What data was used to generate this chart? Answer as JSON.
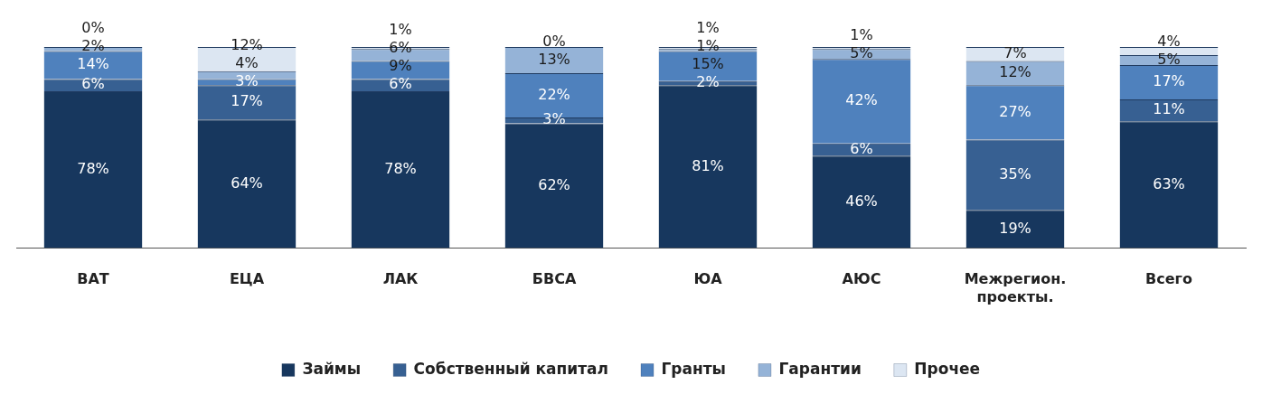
{
  "chart_data": {
    "type": "bar",
    "stacked": true,
    "categories": [
      "ВАТ",
      "ЕЦА",
      "ЛАК",
      "БВСА",
      "ЮА",
      "АЮС",
      "Межрегион. проекты.",
      "Всего"
    ],
    "series": [
      {
        "name": "Займы",
        "color": "#17375e",
        "values": [
          78,
          64,
          78,
          62,
          81,
          46,
          19,
          63
        ],
        "value_labels": [
          "78%",
          "64%",
          "78%",
          "62%",
          "81%",
          "46%",
          "19%",
          "63%"
        ]
      },
      {
        "name": "Собственный капитал",
        "color": "#376092",
        "values": [
          6,
          17,
          6,
          3,
          2,
          6,
          35,
          11
        ],
        "value_labels": [
          "6%",
          "17%",
          "6%",
          "3%",
          "2%",
          "6%",
          "35%",
          "11%"
        ]
      },
      {
        "name": "Гранты",
        "color": "#4f81bd",
        "values": [
          14,
          3,
          9,
          22,
          15,
          42,
          27,
          17
        ],
        "value_labels": [
          "14%",
          "3%",
          "9%",
          "22%",
          "15%",
          "42%",
          "27%",
          "17%"
        ]
      },
      {
        "name": "Гарантии",
        "color": "#95b3d7",
        "values": [
          2,
          4,
          6,
          13,
          1,
          5,
          12,
          5
        ],
        "value_labels": [
          "2%",
          "4%",
          "6%",
          "13%",
          "1%",
          "5%",
          "12%",
          "5%"
        ]
      },
      {
        "name": "Прочее",
        "color": "#dce6f2",
        "values": [
          0,
          12,
          1,
          0,
          1,
          1,
          7,
          4
        ],
        "value_labels": [
          "0%",
          "12%",
          "1%",
          "0%",
          "1%",
          "1%",
          "7%",
          "4%"
        ]
      }
    ],
    "tick_labels": "x",
    "grid": false,
    "legend": "bottom"
  }
}
